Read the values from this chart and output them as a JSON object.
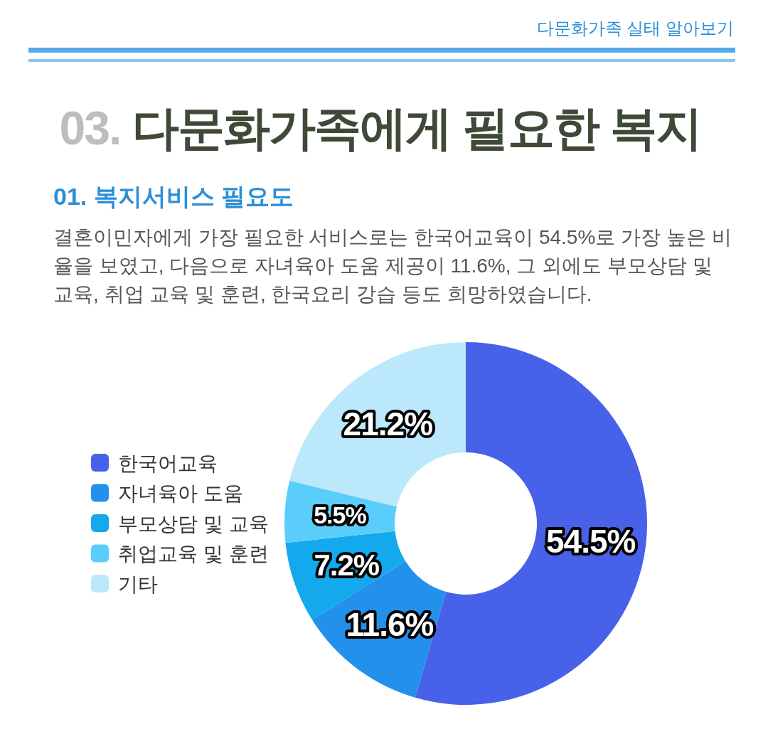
{
  "chart_data": {
    "type": "donut",
    "title": "03. 다문화가족에게 필요한 복지",
    "subtitle": "01. 복지서비스 필요도",
    "annotations": [
      "다문화가족 실태 알아보기",
      "결혼이민자에게 가장 필요한 서비스로는 한국어교육이 54.5%로 가장 높은 비율을 보였고, 다음으로 자녀육아 도움 제공이 11.6%, 그 외에도 부모상담 및 교육, 취업 교육 및 훈련, 한국요리 강습 등도 희망하였습니다."
    ],
    "categories": [
      "한국어교육",
      "자녀육아 도움",
      "부모상담 및 교육",
      "취업교육 및 훈련",
      "기타"
    ],
    "values": [
      54.5,
      11.6,
      7.2,
      5.5,
      21.2
    ],
    "colors": [
      "#4761e8",
      "#2391ec",
      "#14a8ec",
      "#5bcdfb",
      "#bbe8fb"
    ],
    "value_labels": [
      "54.5%",
      "11.6%",
      "7.2%",
      "5.5%",
      "21.2%"
    ],
    "legend": "left"
  }
}
